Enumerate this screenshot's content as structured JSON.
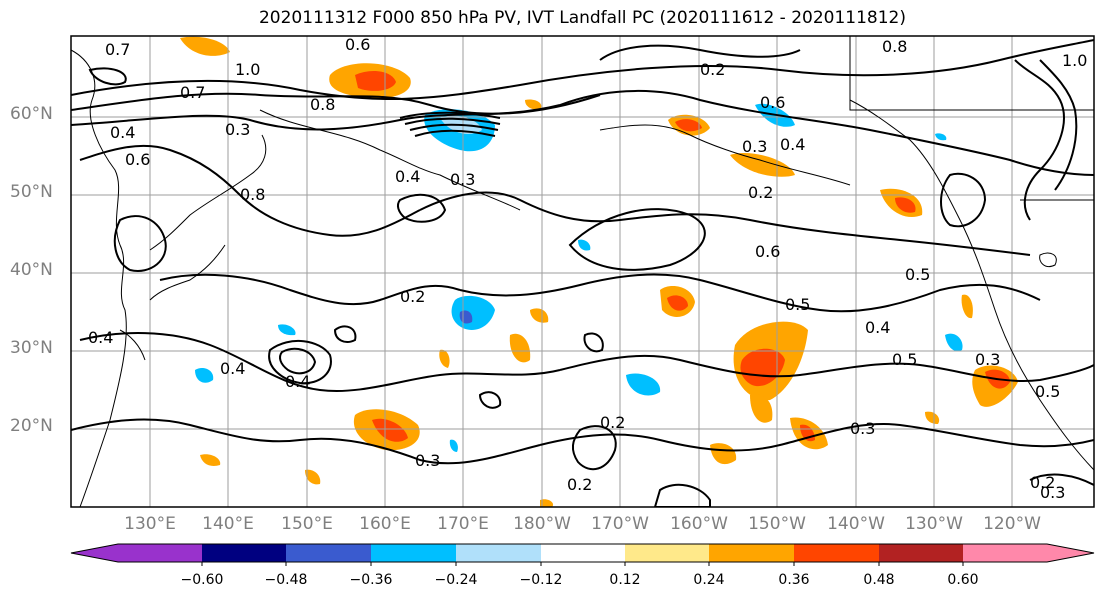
{
  "title": "2020111312 F000 850 hPa PV, IVT Landfall PC (2020111612 - 2020111812)",
  "map": {
    "lat_labels": [
      "60°N",
      "50°N",
      "40°N",
      "30°N",
      "20°N"
    ],
    "lon_labels": [
      "130°E",
      "140°E",
      "150°E",
      "160°E",
      "170°E",
      "180°W",
      "170°W",
      "160°W",
      "150°W",
      "140°W",
      "130°W",
      "120°W"
    ],
    "lat_range": [
      10,
      70
    ],
    "lon_range": [
      "121°E",
      "111°W"
    ],
    "grid": true,
    "contour_labels": [
      "0.7",
      "0.6",
      "1.0",
      "0.8",
      "0.2",
      "0.7",
      "0.4",
      "0.3",
      "0.3",
      "0.8",
      "0.4",
      "0.6",
      "0.2",
      "0.3",
      "0.4",
      "0.6",
      "0.6",
      "0.5",
      "0.2",
      "0.5",
      "0.4",
      "0.5",
      "0.3",
      "0.5",
      "0.4",
      "0.4",
      "0.3",
      "0.2",
      "0.3",
      "0.2",
      "0.3",
      "0.2",
      "0.4",
      "1.0",
      "0.8"
    ]
  },
  "colorbar": {
    "tick_labels": [
      "−0.60",
      "−0.48",
      "−0.36",
      "−0.24",
      "−0.12",
      "0.12",
      "0.24",
      "0.36",
      "0.48",
      "0.60"
    ],
    "colors": [
      "#9932cc",
      "#000080",
      "#3a5bcf",
      "#00bfff",
      "#b0e0fa",
      "#ffffff",
      "#ffe98a",
      "#ffa500",
      "#ff4500",
      "#b22222",
      "#ff88aa"
    ]
  }
}
